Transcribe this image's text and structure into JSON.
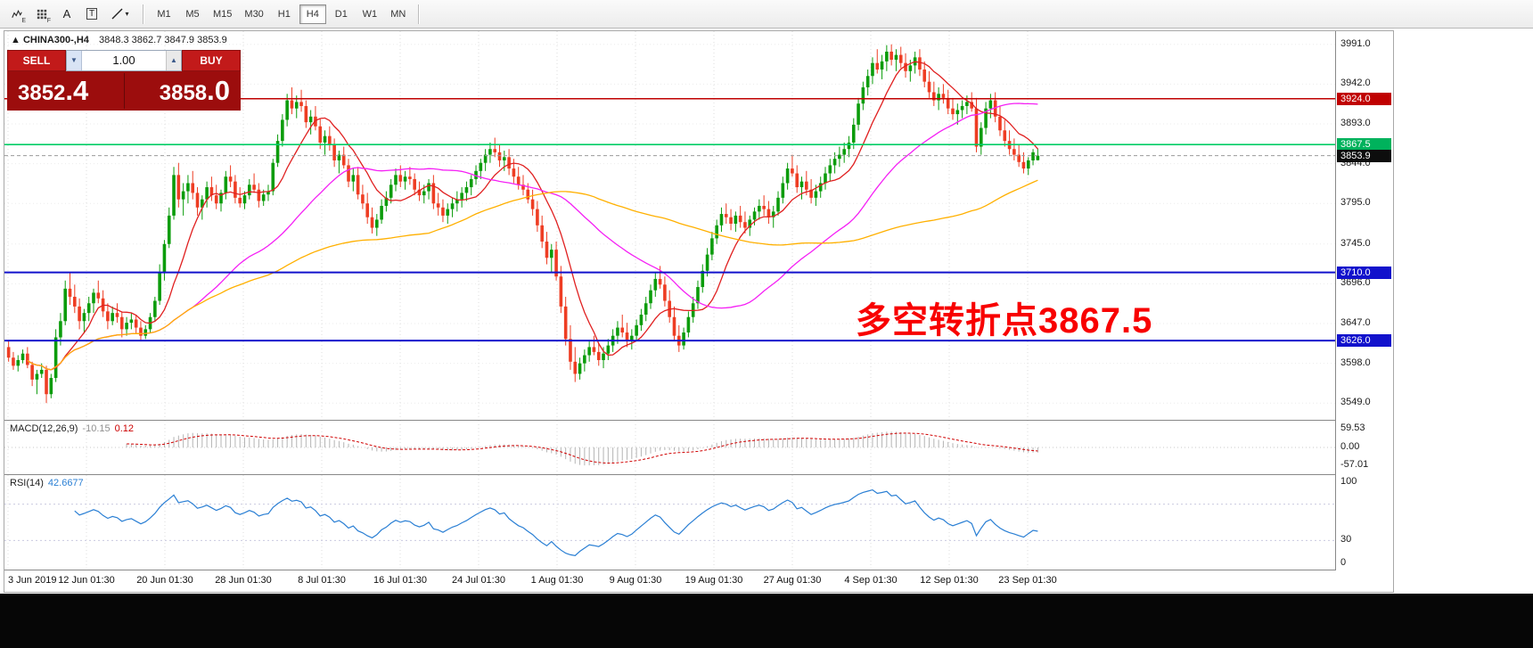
{
  "toolbar": {
    "icons": {
      "ea_sub": "E",
      "grid_sub": "F",
      "text_a": "A",
      "text_t": "T",
      "caret": "▾"
    },
    "timeframes": [
      {
        "label": "M1",
        "active": false
      },
      {
        "label": "M5",
        "active": false
      },
      {
        "label": "M15",
        "active": false
      },
      {
        "label": "M30",
        "active": false
      },
      {
        "label": "H1",
        "active": false
      },
      {
        "label": "H4",
        "active": true
      },
      {
        "label": "D1",
        "active": false
      },
      {
        "label": "W1",
        "active": false
      },
      {
        "label": "MN",
        "active": false
      }
    ]
  },
  "chart_header": {
    "arrow": "▲",
    "symbol_period": "CHINA300-,H4",
    "ohlc": "3848.3 3862.7 3847.9 3853.9"
  },
  "trade_panel": {
    "sell_label": "SELL",
    "buy_label": "BUY",
    "volume": "1.00",
    "spin_down": "▼",
    "spin_up": "▲",
    "sell_price_int": "3852",
    "sell_price_dec": ".4",
    "buy_price_int": "3858",
    "buy_price_dec": ".0"
  },
  "annotation": {
    "text": "多空转折点3867.5",
    "color": "#f80000"
  },
  "chart_data": {
    "type": "candlestick",
    "symbol": "CHINA300-",
    "period": "H4",
    "last_ohlc": {
      "open": 3848.3,
      "high": 3862.7,
      "low": 3847.9,
      "close": 3853.9
    },
    "price_axis_ticks": [
      "3991.0",
      "3942.0",
      "3893.0",
      "3844.0",
      "3795.0",
      "3745.0",
      "3696.0",
      "3647.0",
      "3598.0",
      "3549.0"
    ],
    "time_axis_ticks": [
      "3 Jun 2019",
      "12 Jun 01:30",
      "20 Jun 01:30",
      "28 Jun 01:30",
      "8 Jul 01:30",
      "16 Jul 01:30",
      "24 Jul 01:30",
      "1 Aug 01:30",
      "9 Aug 01:30",
      "19 Aug 01:30",
      "27 Aug 01:30",
      "4 Sep 01:30",
      "12 Sep 01:30",
      "23 Sep 01:30"
    ],
    "price_range": [
      3535,
      4005
    ],
    "up_color": "#0b9c0b",
    "down_color": "#ee3d23",
    "hlines": [
      {
        "value": 3924.0,
        "color": "#c00000",
        "badge": "3924.0",
        "badge_color": "#c00000",
        "width": 1.4
      },
      {
        "value": 3867.5,
        "color": "#00cd66",
        "badge": "3867.5",
        "badge_color": "#00b25c",
        "width": 1.6
      },
      {
        "value": 3710.0,
        "color": "#1212cc",
        "badge": "3710.0",
        "badge_color": "#1212cc",
        "width": 2
      },
      {
        "value": 3626.0,
        "color": "#1212cc",
        "badge": "3626.0",
        "badge_color": "#1212cc",
        "width": 2
      }
    ],
    "current_price": {
      "value": 3853.9,
      "badge": "3853.9",
      "color": "#0d0d0d"
    },
    "moving_averages": [
      {
        "period": 10,
        "color": "#e02020"
      },
      {
        "period": 40,
        "color": "#f520f5"
      },
      {
        "period": 90,
        "color": "#ffb000"
      }
    ],
    "indicators": {
      "macd": {
        "name": "MACD(12,26,9)",
        "value_main": "-10.15",
        "value_signal": "0.12",
        "fast": 12,
        "slow": 26,
        "signal": 9,
        "range": 75,
        "axis_ticks": [
          "59.53",
          "0.00",
          "-57.01"
        ],
        "axis_values": [
          59.53,
          0,
          -57.01
        ],
        "hist_color": "#b4b4b4",
        "signal_color": "#d00000"
      },
      "rsi": {
        "name": "RSI(14)",
        "value": "42.6677",
        "period": 14,
        "axis_ticks": [
          "100",
          "30",
          "0"
        ],
        "axis_values": [
          100,
          30,
          0
        ],
        "levels": [
          70,
          30
        ],
        "color": "#2a7fd4"
      }
    },
    "candles": [
      [
        3618,
        3625,
        3600,
        3605
      ],
      [
        3605,
        3612,
        3590,
        3595
      ],
      [
        3595,
        3608,
        3588,
        3602
      ],
      [
        3602,
        3615,
        3598,
        3610
      ],
      [
        3610,
        3618,
        3592,
        3596
      ],
      [
        3596,
        3600,
        3570,
        3578
      ],
      [
        3578,
        3590,
        3560,
        3585
      ],
      [
        3585,
        3598,
        3580,
        3590
      ],
      [
        3590,
        3595,
        3549,
        3560
      ],
      [
        3560,
        3585,
        3555,
        3580
      ],
      [
        3580,
        3640,
        3575,
        3630
      ],
      [
        3630,
        3660,
        3620,
        3650
      ],
      [
        3650,
        3700,
        3645,
        3690
      ],
      [
        3690,
        3710,
        3670,
        3680
      ],
      [
        3680,
        3695,
        3660,
        3668
      ],
      [
        3668,
        3678,
        3640,
        3650
      ],
      [
        3650,
        3665,
        3635,
        3660
      ],
      [
        3660,
        3680,
        3650,
        3672
      ],
      [
        3672,
        3690,
        3660,
        3685
      ],
      [
        3685,
        3700,
        3672,
        3678
      ],
      [
        3678,
        3688,
        3655,
        3662
      ],
      [
        3662,
        3672,
        3640,
        3650
      ],
      [
        3650,
        3668,
        3645,
        3660
      ],
      [
        3660,
        3672,
        3648,
        3655
      ],
      [
        3655,
        3662,
        3630,
        3640
      ],
      [
        3640,
        3655,
        3632,
        3648
      ],
      [
        3648,
        3660,
        3640,
        3652
      ],
      [
        3652,
        3658,
        3635,
        3642
      ],
      [
        3642,
        3650,
        3625,
        3632
      ],
      [
        3632,
        3645,
        3628,
        3640
      ],
      [
        3640,
        3660,
        3635,
        3655
      ],
      [
        3655,
        3680,
        3650,
        3675
      ],
      [
        3675,
        3720,
        3670,
        3710
      ],
      [
        3710,
        3750,
        3700,
        3745
      ],
      [
        3745,
        3790,
        3740,
        3780
      ],
      [
        3780,
        3840,
        3775,
        3830
      ],
      [
        3830,
        3845,
        3790,
        3800
      ],
      [
        3800,
        3820,
        3780,
        3810
      ],
      [
        3810,
        3830,
        3795,
        3820
      ],
      [
        3820,
        3835,
        3800,
        3808
      ],
      [
        3808,
        3815,
        3780,
        3790
      ],
      [
        3790,
        3805,
        3775,
        3800
      ],
      [
        3800,
        3822,
        3790,
        3815
      ],
      [
        3815,
        3828,
        3798,
        3805
      ],
      [
        3805,
        3818,
        3788,
        3795
      ],
      [
        3795,
        3812,
        3785,
        3808
      ],
      [
        3808,
        3835,
        3800,
        3828
      ],
      [
        3828,
        3842,
        3815,
        3822
      ],
      [
        3822,
        3830,
        3795,
        3802
      ],
      [
        3802,
        3815,
        3790,
        3795
      ],
      [
        3795,
        3810,
        3788,
        3805
      ],
      [
        3805,
        3825,
        3800,
        3818
      ],
      [
        3818,
        3832,
        3808,
        3812
      ],
      [
        3812,
        3820,
        3790,
        3798
      ],
      [
        3798,
        3812,
        3792,
        3806
      ],
      [
        3806,
        3818,
        3798,
        3810
      ],
      [
        3810,
        3850,
        3805,
        3845
      ],
      [
        3845,
        3880,
        3840,
        3872
      ],
      [
        3872,
        3905,
        3865,
        3898
      ],
      [
        3898,
        3930,
        3890,
        3922
      ],
      [
        3922,
        3938,
        3905,
        3912
      ],
      [
        3912,
        3928,
        3900,
        3920
      ],
      [
        3920,
        3935,
        3908,
        3915
      ],
      [
        3915,
        3922,
        3888,
        3895
      ],
      [
        3895,
        3910,
        3880,
        3902
      ],
      [
        3902,
        3915,
        3885,
        3890
      ],
      [
        3890,
        3900,
        3862,
        3870
      ],
      [
        3870,
        3885,
        3855,
        3878
      ],
      [
        3878,
        3890,
        3860,
        3868
      ],
      [
        3868,
        3875,
        3840,
        3848
      ],
      [
        3848,
        3860,
        3832,
        3855
      ],
      [
        3855,
        3865,
        3838,
        3842
      ],
      [
        3842,
        3850,
        3815,
        3822
      ],
      [
        3822,
        3838,
        3810,
        3830
      ],
      [
        3830,
        3840,
        3800,
        3806
      ],
      [
        3806,
        3818,
        3788,
        3795
      ],
      [
        3795,
        3808,
        3770,
        3778
      ],
      [
        3778,
        3790,
        3758,
        3765
      ],
      [
        3765,
        3782,
        3755,
        3775
      ],
      [
        3775,
        3800,
        3770,
        3792
      ],
      [
        3792,
        3810,
        3785,
        3802
      ],
      [
        3802,
        3825,
        3795,
        3818
      ],
      [
        3818,
        3838,
        3810,
        3830
      ],
      [
        3830,
        3842,
        3815,
        3822
      ],
      [
        3822,
        3835,
        3812,
        3828
      ],
      [
        3828,
        3840,
        3818,
        3825
      ],
      [
        3825,
        3832,
        3805,
        3812
      ],
      [
        3812,
        3822,
        3798,
        3805
      ],
      [
        3805,
        3818,
        3795,
        3810
      ],
      [
        3810,
        3825,
        3800,
        3820
      ],
      [
        3820,
        3830,
        3788,
        3795
      ],
      [
        3795,
        3808,
        3780,
        3790
      ],
      [
        3790,
        3800,
        3772,
        3780
      ],
      [
        3780,
        3795,
        3770,
        3788
      ],
      [
        3788,
        3802,
        3778,
        3795
      ],
      [
        3795,
        3810,
        3785,
        3800
      ],
      [
        3800,
        3815,
        3790,
        3808
      ],
      [
        3808,
        3822,
        3798,
        3815
      ],
      [
        3815,
        3830,
        3805,
        3825
      ],
      [
        3825,
        3842,
        3818,
        3835
      ],
      [
        3835,
        3850,
        3825,
        3845
      ],
      [
        3845,
        3862,
        3835,
        3855
      ],
      [
        3855,
        3870,
        3845,
        3862
      ],
      [
        3862,
        3876,
        3852,
        3858
      ],
      [
        3858,
        3868,
        3840,
        3848
      ],
      [
        3848,
        3860,
        3835,
        3852
      ],
      [
        3852,
        3862,
        3830,
        3838
      ],
      [
        3838,
        3850,
        3820,
        3828
      ],
      [
        3828,
        3840,
        3812,
        3818
      ],
      [
        3818,
        3830,
        3805,
        3812
      ],
      [
        3812,
        3820,
        3795,
        3800
      ],
      [
        3800,
        3812,
        3780,
        3788
      ],
      [
        3788,
        3798,
        3760,
        3768
      ],
      [
        3768,
        3780,
        3740,
        3748
      ],
      [
        3748,
        3760,
        3720,
        3728
      ],
      [
        3728,
        3745,
        3710,
        3738
      ],
      [
        3738,
        3748,
        3700,
        3705
      ],
      [
        3705,
        3718,
        3660,
        3668
      ],
      [
        3668,
        3680,
        3620,
        3628
      ],
      [
        3628,
        3645,
        3590,
        3600
      ],
      [
        3600,
        3618,
        3575,
        3585
      ],
      [
        3585,
        3605,
        3578,
        3598
      ],
      [
        3598,
        3615,
        3588,
        3608
      ],
      [
        3608,
        3625,
        3600,
        3618
      ],
      [
        3618,
        3632,
        3608,
        3612
      ],
      [
        3612,
        3622,
        3595,
        3602
      ],
      [
        3602,
        3618,
        3592,
        3610
      ],
      [
        3610,
        3628,
        3602,
        3620
      ],
      [
        3620,
        3640,
        3612,
        3632
      ],
      [
        3632,
        3650,
        3622,
        3642
      ],
      [
        3642,
        3658,
        3630,
        3636
      ],
      [
        3636,
        3648,
        3618,
        3625
      ],
      [
        3625,
        3640,
        3615,
        3632
      ],
      [
        3632,
        3652,
        3625,
        3645
      ],
      [
        3645,
        3665,
        3638,
        3658
      ],
      [
        3658,
        3680,
        3650,
        3672
      ],
      [
        3672,
        3695,
        3665,
        3688
      ],
      [
        3688,
        3710,
        3680,
        3702
      ],
      [
        3702,
        3718,
        3690,
        3695
      ],
      [
        3695,
        3705,
        3668,
        3675
      ],
      [
        3675,
        3688,
        3648,
        3655
      ],
      [
        3655,
        3668,
        3625,
        3632
      ],
      [
        3632,
        3645,
        3612,
        3620
      ],
      [
        3620,
        3642,
        3615,
        3636
      ],
      [
        3636,
        3662,
        3630,
        3655
      ],
      [
        3655,
        3680,
        3648,
        3672
      ],
      [
        3672,
        3700,
        3665,
        3692
      ],
      [
        3692,
        3720,
        3685,
        3712
      ],
      [
        3712,
        3740,
        3705,
        3732
      ],
      [
        3732,
        3760,
        3725,
        3752
      ],
      [
        3752,
        3775,
        3745,
        3768
      ],
      [
        3768,
        3790,
        3760,
        3782
      ],
      [
        3782,
        3795,
        3770,
        3778
      ],
      [
        3778,
        3788,
        3762,
        3770
      ],
      [
        3770,
        3785,
        3760,
        3780
      ],
      [
        3780,
        3792,
        3765,
        3772
      ],
      [
        3772,
        3785,
        3758,
        3765
      ],
      [
        3765,
        3780,
        3755,
        3775
      ],
      [
        3775,
        3790,
        3768,
        3785
      ],
      [
        3785,
        3800,
        3775,
        3792
      ],
      [
        3792,
        3805,
        3780,
        3788
      ],
      [
        3788,
        3798,
        3770,
        3778
      ],
      [
        3778,
        3792,
        3765,
        3785
      ],
      [
        3785,
        3810,
        3780,
        3802
      ],
      [
        3802,
        3828,
        3795,
        3820
      ],
      [
        3820,
        3845,
        3812,
        3838
      ],
      [
        3838,
        3855,
        3828,
        3832
      ],
      [
        3832,
        3842,
        3808,
        3815
      ],
      [
        3815,
        3828,
        3800,
        3822
      ],
      [
        3822,
        3835,
        3805,
        3812
      ],
      [
        3812,
        3825,
        3795,
        3802
      ],
      [
        3802,
        3818,
        3792,
        3810
      ],
      [
        3810,
        3828,
        3802,
        3820
      ],
      [
        3820,
        3840,
        3812,
        3832
      ],
      [
        3832,
        3850,
        3822,
        3842
      ],
      [
        3842,
        3858,
        3832,
        3850
      ],
      [
        3850,
        3865,
        3840,
        3855
      ],
      [
        3855,
        3870,
        3845,
        3862
      ],
      [
        3862,
        3878,
        3852,
        3870
      ],
      [
        3870,
        3900,
        3862,
        3892
      ],
      [
        3892,
        3925,
        3885,
        3918
      ],
      [
        3918,
        3945,
        3910,
        3938
      ],
      [
        3938,
        3960,
        3928,
        3952
      ],
      [
        3952,
        3975,
        3942,
        3968
      ],
      [
        3968,
        3985,
        3955,
        3960
      ],
      [
        3960,
        3978,
        3948,
        3970
      ],
      [
        3970,
        3990,
        3958,
        3982
      ],
      [
        3982,
        3991,
        3965,
        3972
      ],
      [
        3972,
        3985,
        3958,
        3978
      ],
      [
        3978,
        3988,
        3962,
        3968
      ],
      [
        3968,
        3980,
        3950,
        3958
      ],
      [
        3958,
        3972,
        3945,
        3965
      ],
      [
        3965,
        3982,
        3955,
        3975
      ],
      [
        3975,
        3985,
        3952,
        3960
      ],
      [
        3960,
        3970,
        3938,
        3945
      ],
      [
        3945,
        3958,
        3925,
        3932
      ],
      [
        3932,
        3945,
        3915,
        3922
      ],
      [
        3922,
        3938,
        3910,
        3930
      ],
      [
        3930,
        3942,
        3918,
        3925
      ],
      [
        3925,
        3935,
        3905,
        3912
      ],
      [
        3912,
        3925,
        3898,
        3905
      ],
      [
        3905,
        3918,
        3892,
        3910
      ],
      [
        3910,
        3922,
        3900,
        3915
      ],
      [
        3915,
        3928,
        3905,
        3920
      ],
      [
        3920,
        3932,
        3908,
        3912
      ],
      [
        3912,
        3925,
        3858,
        3865
      ],
      [
        3865,
        3895,
        3855,
        3888
      ],
      [
        3888,
        3920,
        3880,
        3912
      ],
      [
        3912,
        3930,
        3900,
        3922
      ],
      [
        3922,
        3932,
        3895,
        3902
      ],
      [
        3902,
        3915,
        3878,
        3885
      ],
      [
        3885,
        3898,
        3865,
        3872
      ],
      [
        3872,
        3885,
        3855,
        3862
      ],
      [
        3862,
        3875,
        3848,
        3855
      ],
      [
        3855,
        3868,
        3840,
        3846
      ],
      [
        3846,
        3858,
        3832,
        3838
      ],
      [
        3838,
        3852,
        3830,
        3848
      ],
      [
        3848,
        3862,
        3842,
        3858
      ],
      [
        3848.3,
        3862.7,
        3847.9,
        3853.9
      ]
    ]
  }
}
